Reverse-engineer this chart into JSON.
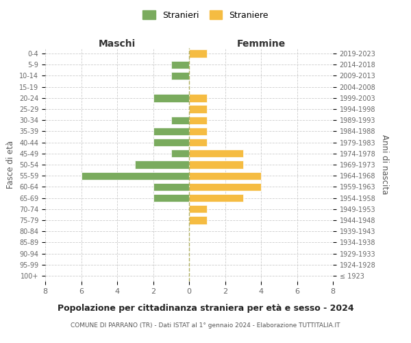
{
  "age_groups": [
    "100+",
    "95-99",
    "90-94",
    "85-89",
    "80-84",
    "75-79",
    "70-74",
    "65-69",
    "60-64",
    "55-59",
    "50-54",
    "45-49",
    "40-44",
    "35-39",
    "30-34",
    "25-29",
    "20-24",
    "15-19",
    "10-14",
    "5-9",
    "0-4"
  ],
  "birth_years": [
    "≤ 1923",
    "1924-1928",
    "1929-1933",
    "1934-1938",
    "1939-1943",
    "1944-1948",
    "1949-1953",
    "1954-1958",
    "1959-1963",
    "1964-1968",
    "1969-1973",
    "1974-1978",
    "1979-1983",
    "1984-1988",
    "1989-1993",
    "1994-1998",
    "1999-2003",
    "2004-2008",
    "2009-2013",
    "2014-2018",
    "2019-2023"
  ],
  "maschi": [
    0,
    0,
    0,
    0,
    0,
    0,
    0,
    2,
    2,
    6,
    3,
    1,
    2,
    2,
    1,
    0,
    2,
    0,
    1,
    1,
    0
  ],
  "femmine": [
    0,
    0,
    0,
    0,
    0,
    1,
    1,
    3,
    4,
    4,
    3,
    3,
    1,
    1,
    1,
    1,
    1,
    0,
    0,
    0,
    1
  ],
  "color_maschi": "#7aab5e",
  "color_femmine": "#f5bc42",
  "title": "Popolazione per cittadinanza straniera per età e sesso - 2024",
  "subtitle": "COMUNE DI PARRANO (TR) - Dati ISTAT al 1° gennaio 2024 - Elaborazione TUTTITALIA.IT",
  "xlabel_left": "Maschi",
  "xlabel_right": "Femmine",
  "ylabel_left": "Fasce di età",
  "ylabel_right": "Anni di nascita",
  "legend_maschi": "Stranieri",
  "legend_femmine": "Straniere",
  "xlim": 8,
  "background_color": "#ffffff",
  "grid_color": "#cccccc"
}
